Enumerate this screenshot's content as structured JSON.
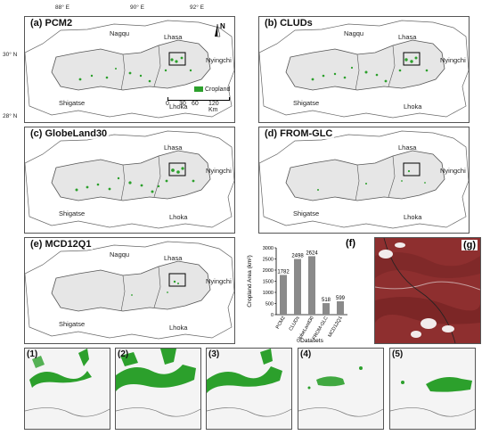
{
  "panels": [
    {
      "label": "(a) PCM2"
    },
    {
      "label": "(b) CLUDs"
    },
    {
      "label": "(c) GlobeLand30"
    },
    {
      "label": "(d) FROM-GLC"
    },
    {
      "label": "(e) MCD12Q1"
    }
  ],
  "regions": {
    "nagqu": "Nagqu",
    "lhasa": "Lhasa",
    "nyingchi": "Nyingchi",
    "shigatse": "Shigatse",
    "lhoka": "Lhoka"
  },
  "axes": {
    "lon": [
      "88° E",
      "90° E",
      "92° E"
    ],
    "lat": [
      "30° N",
      "28° N"
    ]
  },
  "north": "N",
  "legend": {
    "label": "Cropland",
    "scale": [
      "0",
      "30",
      "60",
      "120 Km"
    ]
  },
  "chart_panel_label": "(f)",
  "image_panel_label": "(g)",
  "zoom_labels": [
    "(1)",
    "(2)",
    "(3)",
    "(4)",
    "(5)"
  ],
  "colors": {
    "cropland": "#2ca02c",
    "region_fill": "#e6e6e6",
    "bar": "#8a8a8a",
    "satellite": "#8e2f2f"
  },
  "chart_data": {
    "type": "bar",
    "categories": [
      "PCM2",
      "CLUDs",
      "GlobeLand30",
      "FROM-GLC",
      "MCD12Q1"
    ],
    "values": [
      1782,
      2498,
      2624,
      518,
      599
    ],
    "xlabel": "Datasets",
    "ylabel": "Cropland Area (km²)",
    "ylim": [
      0,
      3000
    ],
    "yticks": [
      "0",
      "500",
      "1000",
      "1500",
      "2000",
      "2500",
      "3000"
    ]
  }
}
